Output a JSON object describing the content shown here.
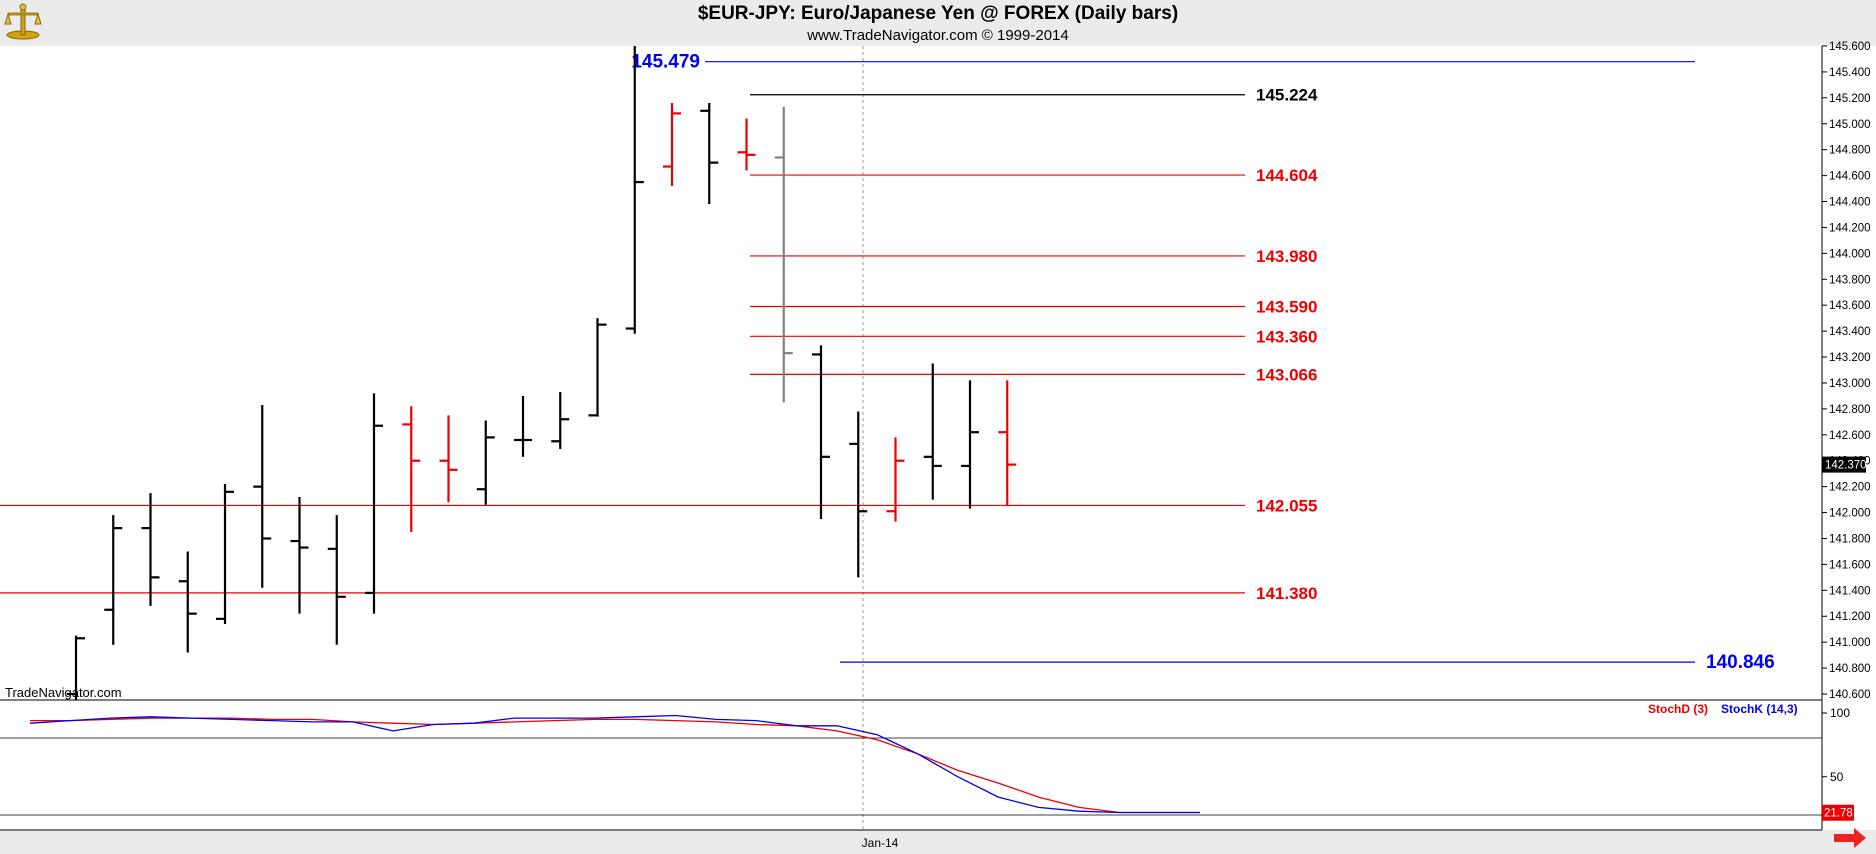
{
  "header": {
    "title": "$EUR-JPY:  Euro/Japanese Yen @ FOREX  (Daily bars)",
    "subtitle": "www.TradeNavigator.com © 1999-2014"
  },
  "watermark": "TradeNavigator.com",
  "icons": {
    "logo": "trade-navigator-logo",
    "scroll_right": "red-right-arrow"
  },
  "colors": {
    "up_bar": "#000000",
    "down_bar": "#ee0000",
    "blue_level": "#0000ee",
    "red_level": "#ee0000",
    "stoch_d": "#ee0000",
    "stoch_k": "#0000ee"
  },
  "chart_data": [
    {
      "type": "ohlc",
      "title": "$EUR-JPY:  Euro/Japanese Yen @ FOREX  (Daily bars)",
      "ylim": [
        140.6,
        145.6
      ],
      "y_ticks": [
        "145.600",
        "145.400",
        "145.200",
        "145.000",
        "144.800",
        "144.600",
        "144.400",
        "144.200",
        "144.000",
        "143.800",
        "143.600",
        "143.400",
        "143.200",
        "143.000",
        "142.800",
        "142.600",
        "142.400",
        "142.200",
        "142.000",
        "141.800",
        "141.600",
        "141.400",
        "141.200",
        "141.000",
        "140.800",
        "140.600"
      ],
      "x_label": "Jan-14",
      "last_price": "142.370",
      "bars": [
        {
          "o": 140.6,
          "h": 141.05,
          "l": 140.55,
          "c": 141.03,
          "color": "black"
        },
        {
          "o": 141.25,
          "h": 141.98,
          "l": 140.98,
          "c": 141.88,
          "color": "black"
        },
        {
          "o": 141.88,
          "h": 142.15,
          "l": 141.28,
          "c": 141.5,
          "color": "black"
        },
        {
          "o": 141.47,
          "h": 141.7,
          "l": 140.92,
          "c": 141.22,
          "color": "black"
        },
        {
          "o": 141.18,
          "h": 142.22,
          "l": 141.14,
          "c": 142.16,
          "color": "black"
        },
        {
          "o": 142.2,
          "h": 142.83,
          "l": 141.42,
          "c": 141.8,
          "color": "black"
        },
        {
          "o": 141.78,
          "h": 142.12,
          "l": 141.22,
          "c": 141.73,
          "color": "black"
        },
        {
          "o": 141.72,
          "h": 141.98,
          "l": 140.98,
          "c": 141.35,
          "color": "black"
        },
        {
          "o": 141.38,
          "h": 142.92,
          "l": 141.22,
          "c": 142.67,
          "color": "black"
        },
        {
          "o": 142.68,
          "h": 142.82,
          "l": 141.85,
          "c": 142.4,
          "color": "red"
        },
        {
          "o": 142.4,
          "h": 142.75,
          "l": 142.08,
          "c": 142.33,
          "color": "red"
        },
        {
          "o": 142.18,
          "h": 142.71,
          "l": 142.06,
          "c": 142.58,
          "color": "black"
        },
        {
          "o": 142.56,
          "h": 142.9,
          "l": 142.43,
          "c": 142.56,
          "color": "black"
        },
        {
          "o": 142.55,
          "h": 142.93,
          "l": 142.49,
          "c": 142.72,
          "color": "black"
        },
        {
          "o": 142.75,
          "h": 143.5,
          "l": 142.74,
          "c": 143.45,
          "color": "black"
        },
        {
          "o": 143.42,
          "h": 145.6,
          "l": 143.38,
          "c": 144.55,
          "color": "black"
        },
        {
          "o": 144.67,
          "h": 145.16,
          "l": 144.52,
          "c": 145.08,
          "color": "red"
        },
        {
          "o": 145.1,
          "h": 145.16,
          "l": 144.38,
          "c": 144.7,
          "color": "black"
        },
        {
          "o": 144.78,
          "h": 145.04,
          "l": 144.64,
          "c": 144.76,
          "color": "red"
        },
        {
          "o": 144.74,
          "h": 145.13,
          "l": 142.85,
          "c": 143.23,
          "color": "gray"
        },
        {
          "o": 143.22,
          "h": 143.29,
          "l": 141.95,
          "c": 142.43,
          "color": "black"
        },
        {
          "o": 142.53,
          "h": 142.78,
          "l": 141.5,
          "c": 142.01,
          "color": "black"
        },
        {
          "o": 142.01,
          "h": 142.58,
          "l": 141.93,
          "c": 142.4,
          "color": "red"
        },
        {
          "o": 142.43,
          "h": 143.15,
          "l": 142.1,
          "c": 142.36,
          "color": "black"
        },
        {
          "o": 142.36,
          "h": 143.02,
          "l": 142.03,
          "c": 142.62,
          "color": "black"
        },
        {
          "o": 142.62,
          "h": 143.02,
          "l": 142.05,
          "c": 142.37,
          "color": "red"
        }
      ],
      "levels": [
        {
          "value": 145.479,
          "label": "145.479",
          "color": "blue"
        },
        {
          "value": 145.224,
          "label": "145.224",
          "color": "black"
        },
        {
          "value": 144.604,
          "label": "144.604",
          "color": "red"
        },
        {
          "value": 143.98,
          "label": "143.980",
          "color": "red"
        },
        {
          "value": 143.59,
          "label": "143.590",
          "color": "red"
        },
        {
          "value": 143.36,
          "label": "143.360",
          "color": "red"
        },
        {
          "value": 143.066,
          "label": "143.066",
          "color": "red"
        },
        {
          "value": 142.055,
          "label": "142.055",
          "color": "red"
        },
        {
          "value": 141.38,
          "label": "141.380",
          "color": "red"
        },
        {
          "value": 140.846,
          "label": "140.846",
          "color": "blue"
        }
      ]
    },
    {
      "type": "line",
      "title": "",
      "legend": [
        "StochD (3)",
        "StochK (14,3)"
      ],
      "y_ticks": [
        "100",
        "50"
      ],
      "last_value": "21.78",
      "series": [
        {
          "name": "StochD (3)",
          "color": "red",
          "values": [
            94,
            94,
            95,
            96,
            96,
            96,
            95,
            95,
            93,
            92,
            91,
            92,
            93,
            94,
            95,
            95,
            94,
            93,
            91,
            90,
            86,
            79,
            68,
            55,
            45,
            34,
            26,
            22,
            22,
            22
          ]
        },
        {
          "name": "StochK (14,3)",
          "color": "blue",
          "values": [
            92,
            94,
            96,
            97,
            96,
            95,
            94,
            93,
            93,
            86,
            91,
            92,
            96,
            96,
            96,
            97,
            98,
            95,
            94,
            90,
            90,
            83,
            68,
            50,
            34,
            26,
            23,
            22,
            22,
            22
          ]
        }
      ]
    }
  ]
}
